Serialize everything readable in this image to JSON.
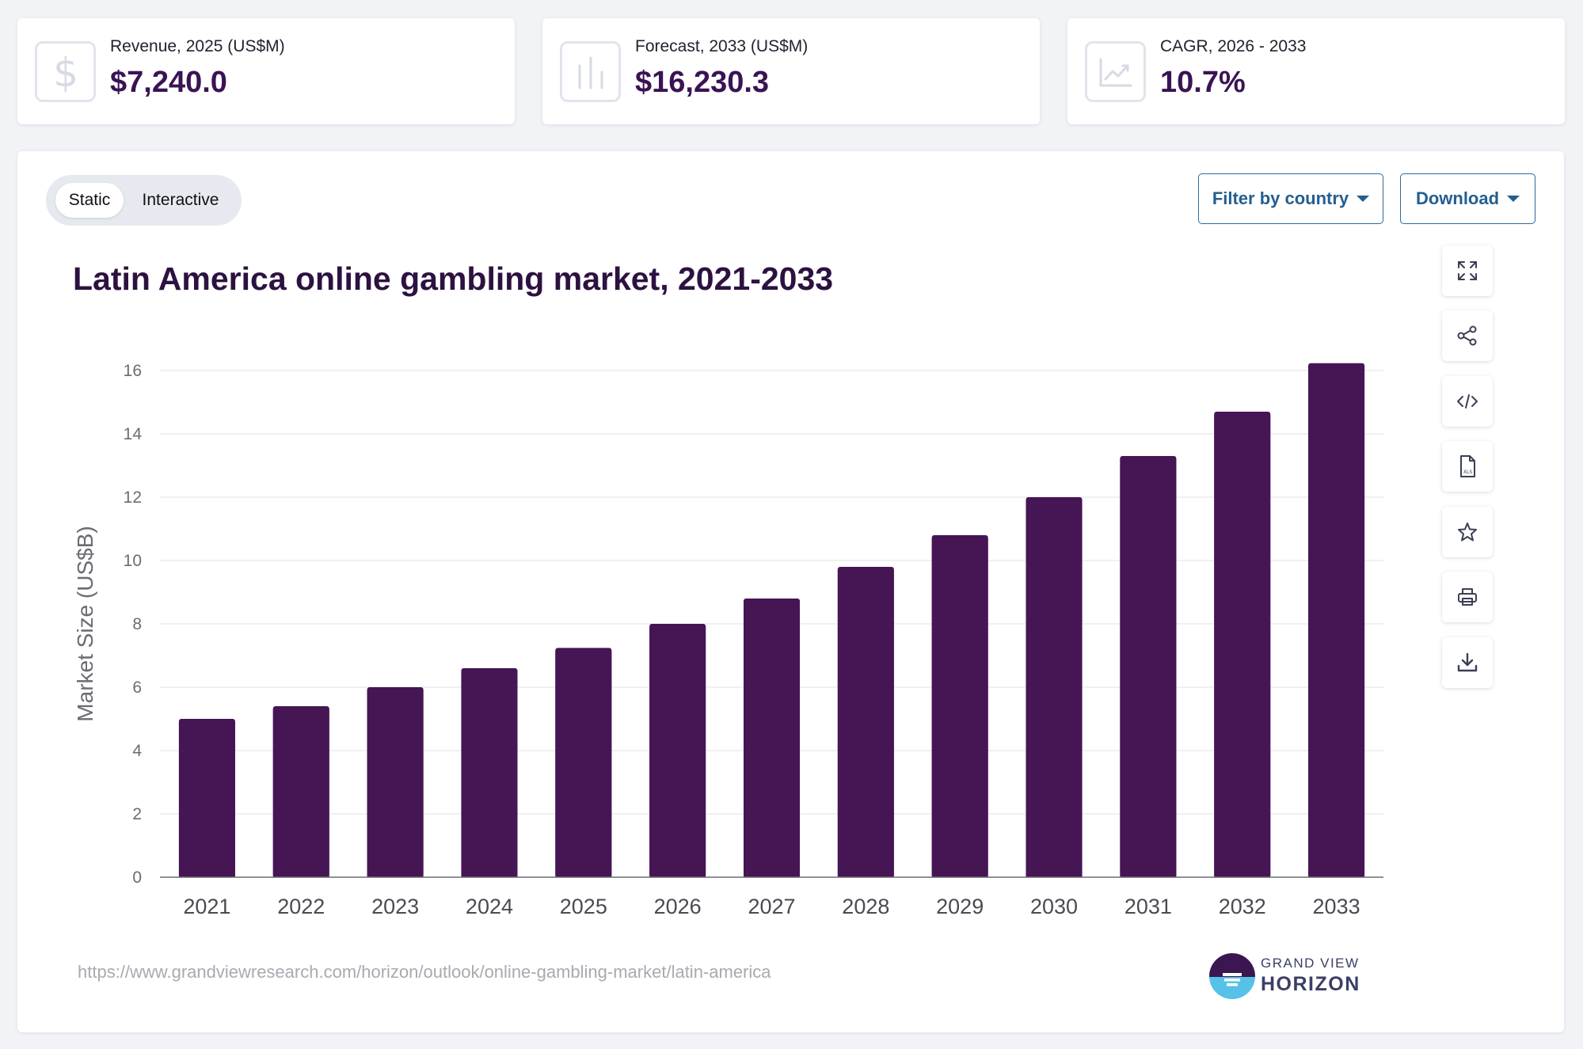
{
  "kpis": [
    {
      "label": "Revenue, 2025 (US$M)",
      "value": "$7,240.0",
      "icon": "dollar-icon"
    },
    {
      "label": "Forecast, 2033 (US$M)",
      "value": "$16,230.3",
      "icon": "bar-chart-icon"
    },
    {
      "label": "CAGR, 2026 - 2033",
      "value": "10.7%",
      "icon": "trend-up-icon"
    }
  ],
  "view_toggle": {
    "static_label": "Static",
    "interactive_label": "Interactive",
    "selected": "Static"
  },
  "controls": {
    "filter_label": "Filter by country",
    "download_label": "Download"
  },
  "toolbar": [
    "expand-icon",
    "share-icon",
    "embed-code-icon",
    "xls-file-icon",
    "star-icon",
    "print-icon",
    "download-icon"
  ],
  "footer": {
    "source_url": "https://www.grandviewresearch.com/horizon/outlook/online-gambling-market/latin-america",
    "brand_top": "GRAND VIEW",
    "brand_bottom": "HORIZON"
  },
  "colors": {
    "bar": "#461554",
    "title": "#2c1240",
    "kpi_value": "#3a1354",
    "accent": "#245e8e"
  },
  "chart_data": {
    "type": "bar",
    "title": "Latin America online gambling market, 2021-2033",
    "xlabel": "",
    "ylabel": "Market Size (US$B)",
    "categories": [
      "2021",
      "2022",
      "2023",
      "2024",
      "2025",
      "2026",
      "2027",
      "2028",
      "2029",
      "2030",
      "2031",
      "2032",
      "2033"
    ],
    "values": [
      5.0,
      5.4,
      6.0,
      6.6,
      7.24,
      8.0,
      8.8,
      9.8,
      10.8,
      12.0,
      13.3,
      14.7,
      16.23
    ],
    "yticks": [
      0,
      2,
      4,
      6,
      8,
      10,
      12,
      14,
      16
    ],
    "ylim": [
      0,
      16
    ],
    "grid": true,
    "legend": "none"
  }
}
